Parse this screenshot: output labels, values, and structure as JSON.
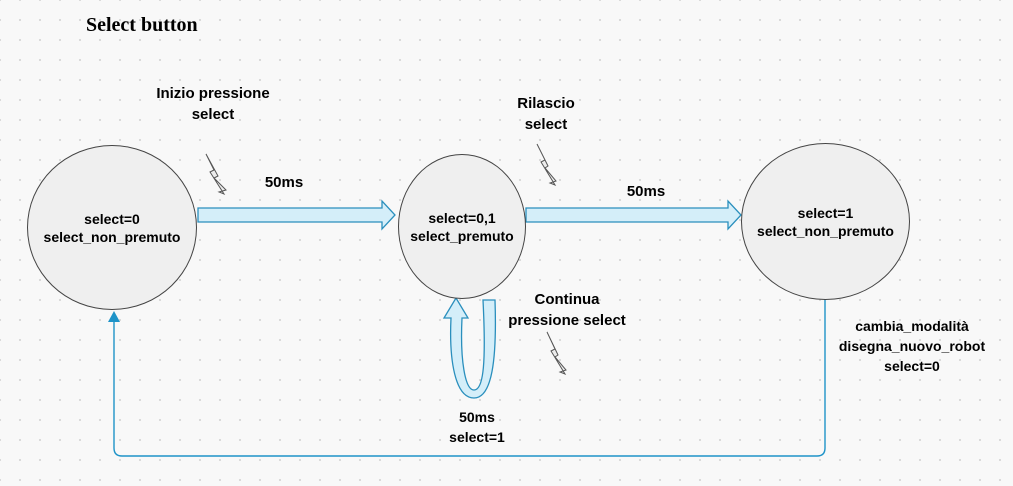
{
  "title": "Select button",
  "states": {
    "s0": {
      "line1": "select=0",
      "line2": "select_non_premuto"
    },
    "s1": {
      "line1": "select=0,1",
      "line2": "select_premuto"
    },
    "s2": {
      "line1": "select=1",
      "line2": "select_non_premuto"
    }
  },
  "labels": {
    "inizio": [
      "Inizio pressione",
      "select"
    ],
    "t1": "50ms",
    "rilascio": [
      "Rilascio",
      "select"
    ],
    "t2": "50ms",
    "continua": [
      "Continua",
      "pressione select"
    ],
    "loop": [
      "50ms",
      "select=1"
    ],
    "action": [
      "cambia_modalità",
      "disegna_nuovo_robot",
      "select=0"
    ]
  },
  "colors": {
    "arrow_fill": "#d4eef9",
    "arrow_stroke": "#2a8fbd",
    "line": "#1e93c8",
    "node_fill": "#efefef"
  },
  "icons": [
    "lightning-icon",
    "lightning-icon",
    "lightning-icon"
  ]
}
